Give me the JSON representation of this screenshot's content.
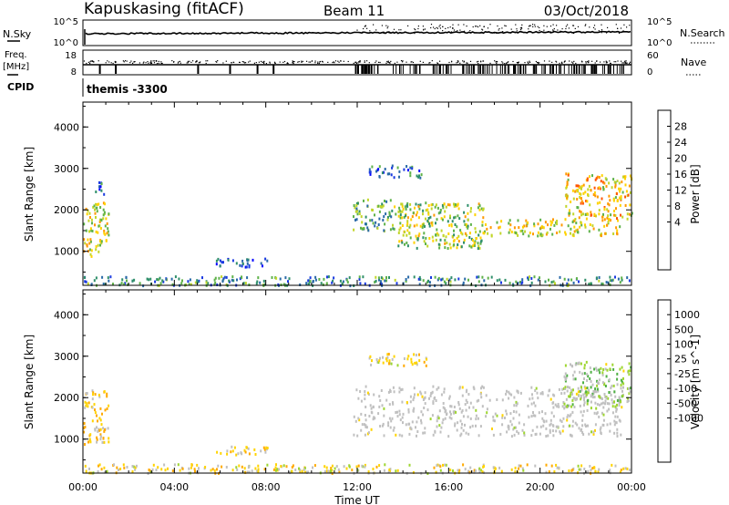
{
  "header": {
    "station": "Kapuskasing (fitACF)",
    "beam": "Beam 11",
    "date": "03/Oct/2018"
  },
  "sky_panel": {
    "left_label": "N.Sky",
    "right_label": "N.Search",
    "left_ticks": [
      "10^5",
      "10^0"
    ],
    "right_ticks": [
      "10^5",
      "10^0"
    ]
  },
  "freq_panel": {
    "left_label_1": "Freq.",
    "left_label_2": "[MHz]",
    "right_label": "Nave",
    "left_ticks": [
      "18",
      "8"
    ],
    "right_ticks": [
      "60",
      "0"
    ]
  },
  "cpid": {
    "label": "CPID",
    "value": "themis -3300"
  },
  "power_colorbar": {
    "label": "Power [dB]",
    "ticks": [
      "28",
      "24",
      "20",
      "16",
      "12",
      "8",
      "4"
    ],
    "colors": [
      "#ff0000",
      "#ff5500",
      "#ff9900",
      "#ffd200",
      "#c2d62a",
      "#5fb24a",
      "#2f8f6a",
      "#2a6aa8",
      "#1a3ae0",
      "#0000ff"
    ]
  },
  "velocity_colorbar": {
    "label": "Velocity [m s^-1]",
    "ticks": [
      "1000",
      "500",
      "100",
      "25",
      "-25",
      "-100",
      "-500",
      "-1000"
    ],
    "colors": [
      "#1630c8",
      "#2a5fb0",
      "#2e8f7a",
      "#4fb044",
      "#9ed630",
      "#c0c0c0",
      "#ffd400",
      "#ffaa00",
      "#ff7a00",
      "#ff3c00",
      "#ff0000"
    ]
  },
  "axes": {
    "ylabel": "Slant Range [km]",
    "xlabel": "Time UT",
    "yticks": [
      "4000",
      "3000",
      "2000",
      "1000"
    ],
    "xticks": [
      "00:00",
      "04:00",
      "08:00",
      "12:00",
      "16:00",
      "20:00",
      "00:00"
    ]
  },
  "chart_data": [
    {
      "type": "heatmap",
      "title": "",
      "xlabel": "",
      "ylabel": "Slant Range [km]",
      "x_range_hours": [
        0,
        24
      ],
      "y_range_km": [
        180,
        4600
      ],
      "colorbar": "Power [dB]",
      "color_range_db": [
        0,
        30
      ],
      "regions": [
        {
          "t0": 0.0,
          "t1": 1.1,
          "r0": 900,
          "r1": 2200,
          "value": 18
        },
        {
          "t0": 0.5,
          "t1": 1.0,
          "r0": 2400,
          "r1": 2700,
          "value": 8
        },
        {
          "t0": 5.8,
          "t1": 8.2,
          "r0": 650,
          "r1": 850,
          "value": 6
        },
        {
          "t0": 0.0,
          "t1": 24.0,
          "r0": 200,
          "r1": 420,
          "value": 10
        },
        {
          "t0": 11.8,
          "t1": 13.5,
          "r0": 1500,
          "r1": 2300,
          "value": 12
        },
        {
          "t0": 13.5,
          "t1": 17.5,
          "r0": 1100,
          "r1": 2200,
          "value": 16
        },
        {
          "t0": 17.5,
          "t1": 23.5,
          "r0": 1400,
          "r1": 1800,
          "value": 18
        },
        {
          "t0": 12.5,
          "t1": 15.0,
          "r0": 2800,
          "r1": 3100,
          "value": 8
        },
        {
          "t0": 21.0,
          "t1": 24.0,
          "r0": 1800,
          "r1": 2900,
          "value": 20
        }
      ]
    },
    {
      "type": "heatmap",
      "title": "",
      "xlabel": "Time UT",
      "ylabel": "Slant Range [km]",
      "x_range_hours": [
        0,
        24
      ],
      "y_range_km": [
        180,
        4600
      ],
      "colorbar": "Velocity [m s^-1]",
      "color_range_ms": [
        -1000,
        1000
      ],
      "regions": [
        {
          "t0": 0.0,
          "t1": 1.1,
          "r0": 900,
          "r1": 2200,
          "value": -200
        },
        {
          "t0": 5.8,
          "t1": 8.2,
          "r0": 650,
          "r1": 850,
          "value": -150
        },
        {
          "t0": 0.0,
          "t1": 24.0,
          "r0": 200,
          "r1": 420,
          "value": -100
        },
        {
          "t0": 11.8,
          "t1": 23.5,
          "r0": 1100,
          "r1": 2300,
          "value": 0
        },
        {
          "t0": 12.5,
          "t1": 15.0,
          "r0": 2800,
          "r1": 3100,
          "value": -120
        },
        {
          "t0": 21.0,
          "t1": 24.0,
          "r0": 1800,
          "r1": 2900,
          "value": 150
        }
      ]
    }
  ]
}
